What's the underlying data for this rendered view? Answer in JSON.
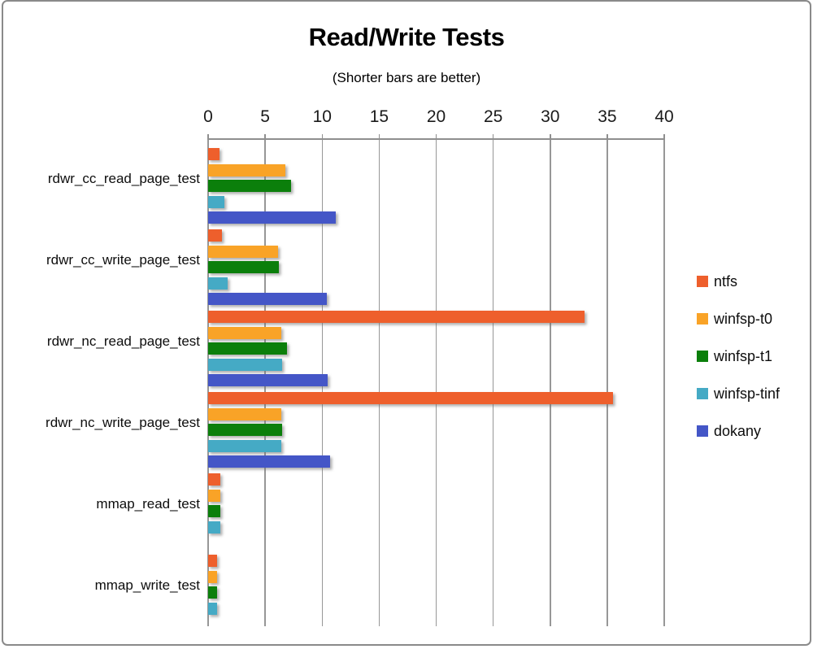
{
  "window": {
    "background": "#ffffff",
    "frame_border_color": "#8a8a8a",
    "gridline_color": "#979797"
  },
  "title": "Read/Write Tests",
  "subtitle": "(Shorter bars are better)",
  "chart_data": {
    "type": "bar",
    "orientation": "horizontal",
    "title": "Read/Write Tests",
    "subtitle": "(Shorter bars are better)",
    "xlabel": "",
    "ylabel": "",
    "xlim": [
      0,
      40
    ],
    "xticks": [
      0,
      5,
      10,
      15,
      20,
      25,
      30,
      35,
      40
    ],
    "grid": true,
    "legend_position": "right",
    "categories": [
      "rdwr_cc_read_page_test",
      "rdwr_cc_write_page_test",
      "rdwr_nc_read_page_test",
      "rdwr_nc_write_page_test",
      "mmap_read_test",
      "mmap_write_test"
    ],
    "series": [
      {
        "name": "ntfs",
        "color": "#EE5F2C",
        "values": [
          1.0,
          1.2,
          33.0,
          35.5,
          1.1,
          0.8
        ]
      },
      {
        "name": "winfsp-t0",
        "color": "#F9A327",
        "values": [
          6.8,
          6.1,
          6.4,
          6.4,
          1.1,
          0.8
        ]
      },
      {
        "name": "winfsp-t1",
        "color": "#0B7F0B",
        "values": [
          7.3,
          6.2,
          6.9,
          6.5,
          1.1,
          0.8
        ]
      },
      {
        "name": "winfsp-tinf",
        "color": "#45AAC5",
        "values": [
          1.4,
          1.7,
          6.5,
          6.4,
          1.1,
          0.8
        ]
      },
      {
        "name": "dokany",
        "color": "#4456C7",
        "values": [
          11.2,
          10.4,
          10.5,
          10.7,
          0,
          0
        ]
      }
    ]
  }
}
